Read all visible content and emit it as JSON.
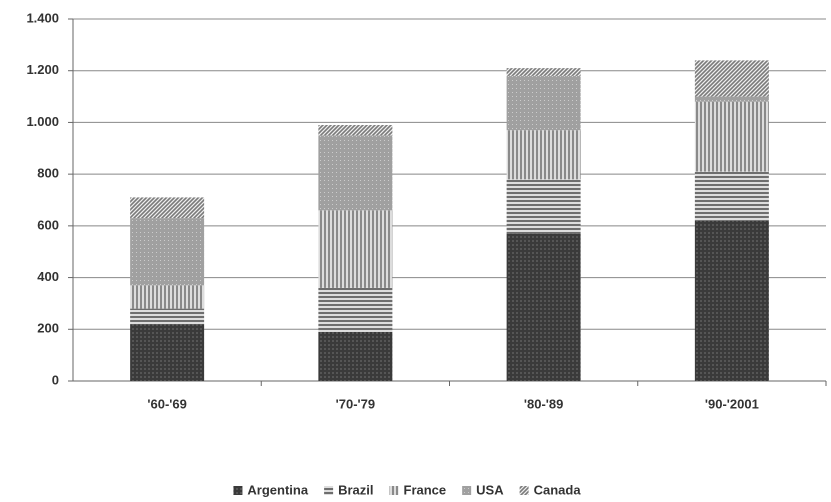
{
  "chart_data": {
    "type": "stacked-bar",
    "categories": [
      "'60-'69",
      "'70-'79",
      "'80-'89",
      "'90-'2001"
    ],
    "series": [
      {
        "name": "Argentina",
        "color": "#3a3a3a",
        "values": [
          220,
          190,
          570,
          620
        ]
      },
      {
        "name": "Brazil",
        "color": "#6e6e6e",
        "values": [
          60,
          170,
          210,
          190
        ]
      },
      {
        "name": "France",
        "color": "#8a8a8a",
        "values": [
          90,
          300,
          190,
          270
        ]
      },
      {
        "name": "USA",
        "color": "#a0a0a0",
        "values": [
          260,
          290,
          210,
          20
        ]
      },
      {
        "name": "Canada",
        "color": "#7a7a7a",
        "values": [
          80,
          40,
          30,
          140
        ]
      }
    ],
    "ylim": [
      0,
      1400
    ],
    "yticks": [
      0,
      200,
      400,
      600,
      800,
      {
        "value": 1000,
        "label": "1.000"
      },
      {
        "value": 1200,
        "label": "1.200"
      },
      {
        "value": 1400,
        "label": "1.400"
      }
    ],
    "grid": true,
    "legend": "bottom"
  }
}
